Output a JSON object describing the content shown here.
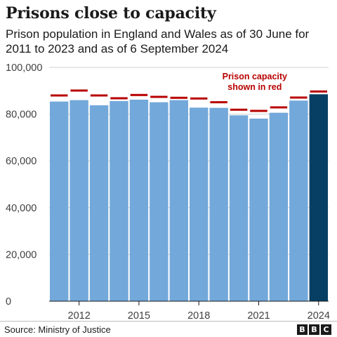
{
  "title": "Prisons close to capacity",
  "subtitle": "Prison population in England and Wales as of 30 June for 2011 to 2023 and as of 6 September 2024",
  "source": "Source: Ministry of Justice",
  "logo_text": "BBC",
  "colors": {
    "bar": "#73a8da",
    "highlight_bar": "#063f63",
    "capacity": "#b80000",
    "grid": "#d0d0d0"
  },
  "chart_data": {
    "type": "bar",
    "categories": [
      "2011",
      "2012",
      "2013",
      "2014",
      "2015",
      "2016",
      "2017",
      "2018",
      "2019",
      "2020",
      "2021",
      "2022",
      "2023",
      "2024"
    ],
    "x_tick_labels": [
      "2012",
      "2015",
      "2018",
      "2021",
      "2024"
    ],
    "series": [
      {
        "values": [
          85400,
          86000,
          83800,
          85600,
          86200,
          85100,
          86000,
          82800,
          82700,
          79500,
          78100,
          80600,
          85800,
          88500
        ]
      }
    ],
    "capacity": [
      88000,
      90100,
      88000,
      86800,
      88200,
      87400,
      87000,
      86700,
      85100,
      81900,
      81400,
      82900,
      87100,
      89700
    ],
    "highlight_category": "2024",
    "ylim": [
      0,
      100000
    ],
    "y_ticks": [
      0,
      20000,
      40000,
      60000,
      80000,
      100000
    ],
    "y_tick_labels": [
      "0",
      "20,000",
      "40,000",
      "60,000",
      "80,000",
      "100,000"
    ],
    "annotation": [
      "Prison capacity",
      "shown in red"
    ],
    "grid": true,
    "legend": "none"
  }
}
